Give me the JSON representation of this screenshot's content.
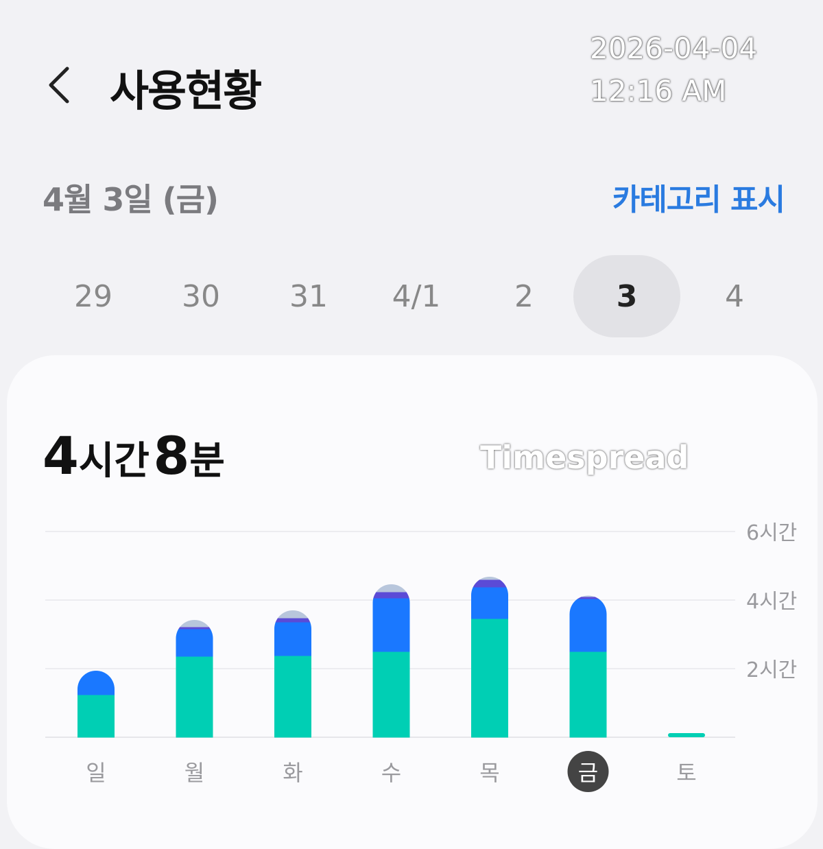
{
  "overlay": {
    "date": "2026-04-04",
    "time": "12:16 AM",
    "watermark": "Timespread"
  },
  "header": {
    "title": "사용현황",
    "back_icon": "chevron-left-icon"
  },
  "date_row": {
    "date": "4월 3일 (금)",
    "category_toggle": "카테고리 표시"
  },
  "day_selector": {
    "days": [
      "29",
      "30",
      "31",
      "4/1",
      "2",
      "3",
      "4"
    ],
    "selected": "3"
  },
  "summary": {
    "hours": "4",
    "hours_unit": "시간",
    "minutes": "8",
    "minutes_unit": "분"
  },
  "colors": {
    "teal": "#00cfb4",
    "blue": "#1a78ff",
    "purple": "#5b4bd6",
    "grey": "#b8c6dc",
    "accent": "#2a7be0"
  },
  "chart_data": {
    "type": "bar",
    "stacked": true,
    "categories": [
      "일",
      "월",
      "화",
      "수",
      "목",
      "금",
      "토"
    ],
    "selected_category": "금",
    "y_ticks": [
      "2시간",
      "4시간",
      "6시간"
    ],
    "ylim": [
      0,
      6
    ],
    "y_unit": "hours",
    "grid": true,
    "series": [
      {
        "color": "#00cfb4",
        "values": [
          1.24,
          2.36,
          2.38,
          2.5,
          3.46,
          2.5,
          0.08
        ]
      },
      {
        "color": "#1a78ff",
        "values": [
          0.7,
          0.8,
          0.98,
          1.56,
          0.92,
          1.54,
          0
        ]
      },
      {
        "color": "#5b4bd6",
        "values": [
          0,
          0.06,
          0.12,
          0.18,
          0.22,
          0.06,
          0
        ]
      },
      {
        "color": "#b8c6dc",
        "values": [
          0,
          0.2,
          0.22,
          0.22,
          0.08,
          0.03,
          0
        ]
      }
    ]
  }
}
